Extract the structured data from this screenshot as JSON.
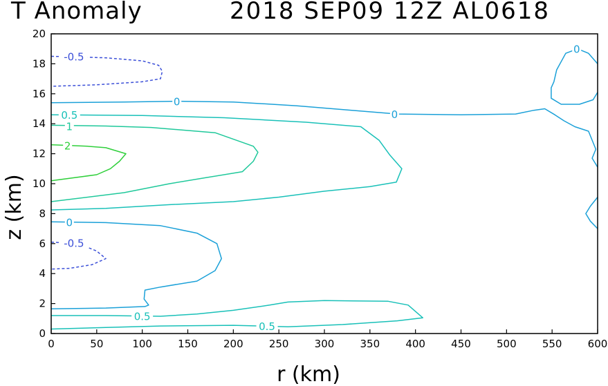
{
  "title_left": "T Anomaly",
  "title_right": "2018 SEP09 12Z   AL0618",
  "chart_data": {
    "type": "contour",
    "title": "T Anomaly   2018 SEP09 12Z   AL0618",
    "xlabel": "r (km)",
    "ylabel": "z (km)",
    "xlim": [
      0,
      600
    ],
    "ylim": [
      0,
      20
    ],
    "xticks": [
      0,
      50,
      100,
      150,
      200,
      250,
      300,
      350,
      400,
      450,
      500,
      550,
      600
    ],
    "yticks": [
      0,
      2,
      4,
      6,
      8,
      10,
      12,
      14,
      16,
      18,
      20
    ],
    "contours": [
      {
        "level": -0.5,
        "color": "#3b4fd8",
        "dashed": true,
        "points": [
          [
            0,
            18.5
          ],
          [
            60,
            18.4
          ],
          [
            100,
            18.2
          ],
          [
            118,
            17.9
          ],
          [
            122,
            17.5
          ],
          [
            120,
            17.0
          ],
          [
            100,
            16.8
          ],
          [
            50,
            16.6
          ],
          [
            0,
            16.5
          ]
        ]
      },
      {
        "level": 0,
        "color": "#1aa0d8",
        "dashed": false,
        "points": [
          [
            0,
            15.4
          ],
          [
            80,
            15.45
          ],
          [
            140,
            15.5
          ],
          [
            200,
            15.45
          ],
          [
            270,
            15.2
          ],
          [
            330,
            14.9
          ],
          [
            380,
            14.65
          ],
          [
            450,
            14.6
          ],
          [
            510,
            14.65
          ],
          [
            530,
            14.9
          ],
          [
            542,
            15.0
          ],
          [
            553,
            14.6
          ],
          [
            563,
            14.2
          ],
          [
            575,
            13.8
          ],
          [
            590,
            13.5
          ],
          [
            598,
            12.3
          ],
          [
            594,
            11.7
          ],
          [
            600,
            11.1
          ]
        ]
      },
      {
        "level": 0,
        "color": "#1aa0d8",
        "dashed": false,
        "points": [
          [
            600,
            18.0
          ],
          [
            590,
            18.7
          ],
          [
            578,
            19.0
          ],
          [
            565,
            18.7
          ],
          [
            555,
            17.6
          ],
          [
            552,
            16.8
          ],
          [
            549,
            16.4
          ],
          [
            549,
            15.7
          ],
          [
            560,
            15.3
          ],
          [
            580,
            15.3
          ],
          [
            595,
            15.6
          ],
          [
            600,
            16.1
          ]
        ]
      },
      {
        "level": 0,
        "color": "#1aa0d8",
        "dashed": false,
        "points": [
          [
            600,
            9.1
          ],
          [
            592,
            8.5
          ],
          [
            587,
            8.0
          ],
          [
            592,
            7.5
          ],
          [
            600,
            7.0
          ]
        ]
      },
      {
        "level": 0,
        "color": "#1aa0d8",
        "dashed": false,
        "points": [
          [
            0,
            7.45
          ],
          [
            60,
            7.4
          ],
          [
            120,
            7.2
          ],
          [
            160,
            6.7
          ],
          [
            182,
            6.0
          ],
          [
            187,
            5.0
          ],
          [
            180,
            4.2
          ],
          [
            160,
            3.5
          ],
          [
            120,
            3.1
          ],
          [
            103,
            2.9
          ],
          [
            102,
            2.3
          ],
          [
            107,
            1.9
          ],
          [
            103,
            1.8
          ],
          [
            60,
            1.7
          ],
          [
            0,
            1.65
          ]
        ]
      },
      {
        "level": 0.5,
        "color": "#18c0b8",
        "dashed": false,
        "points": [
          [
            0,
            14.6
          ],
          [
            100,
            14.55
          ],
          [
            190,
            14.4
          ],
          [
            280,
            14.1
          ],
          [
            340,
            13.8
          ],
          [
            360,
            12.9
          ],
          [
            372,
            11.9
          ],
          [
            385,
            11.0
          ],
          [
            379,
            10.1
          ],
          [
            350,
            9.8
          ],
          [
            300,
            9.5
          ],
          [
            250,
            9.1
          ],
          [
            200,
            8.8
          ],
          [
            130,
            8.6
          ],
          [
            60,
            8.35
          ],
          [
            0,
            8.25
          ]
        ]
      },
      {
        "level": 0.5,
        "color": "#18c0b8",
        "dashed": false,
        "points": [
          [
            0,
            1.2
          ],
          [
            60,
            1.2
          ],
          [
            120,
            1.15
          ],
          [
            160,
            1.3
          ],
          [
            200,
            1.55
          ],
          [
            240,
            1.9
          ],
          [
            260,
            2.1
          ],
          [
            300,
            2.2
          ],
          [
            370,
            2.15
          ],
          [
            392,
            1.9
          ],
          [
            408,
            1.05
          ],
          [
            380,
            0.85
          ],
          [
            320,
            0.6
          ],
          [
            260,
            0.45
          ],
          [
            200,
            0.55
          ],
          [
            120,
            0.5
          ],
          [
            60,
            0.4
          ],
          [
            0,
            0.3
          ]
        ]
      },
      {
        "level": 1,
        "color": "#1ec89a",
        "dashed": false,
        "points": [
          [
            0,
            13.9
          ],
          [
            60,
            13.85
          ],
          [
            110,
            13.75
          ],
          [
            180,
            13.4
          ],
          [
            222,
            12.5
          ],
          [
            227,
            12.1
          ],
          [
            222,
            11.5
          ],
          [
            210,
            10.8
          ],
          [
            170,
            10.4
          ],
          [
            130,
            10.0
          ],
          [
            80,
            9.4
          ],
          [
            0,
            8.8
          ]
        ]
      },
      {
        "level": 2,
        "color": "#2ecf3a",
        "dashed": false,
        "points": [
          [
            0,
            12.6
          ],
          [
            40,
            12.5
          ],
          [
            60,
            12.4
          ],
          [
            82,
            12.0
          ],
          [
            75,
            11.5
          ],
          [
            65,
            11.0
          ],
          [
            50,
            10.6
          ],
          [
            0,
            10.2
          ]
        ]
      }
    ],
    "contour_labels": [
      {
        "text": "-0.5",
        "x": 25,
        "y": 18.5,
        "color": "#3b4fd8"
      },
      {
        "text": "0",
        "x": 138,
        "y": 15.5,
        "color": "#1aa0d8"
      },
      {
        "text": "0",
        "x": 377,
        "y": 14.65,
        "color": "#1aa0d8"
      },
      {
        "text": "0",
        "x": 577,
        "y": 19.0,
        "color": "#1aa0d8"
      },
      {
        "text": "0.5",
        "x": 20,
        "y": 14.6,
        "color": "#18c0b8"
      },
      {
        "text": "1",
        "x": 20,
        "y": 13.85,
        "color": "#1ec89a"
      },
      {
        "text": "2",
        "x": 18,
        "y": 12.55,
        "color": "#2ecf3a"
      },
      {
        "text": "0",
        "x": 20,
        "y": 7.45,
        "color": "#1aa0d8"
      },
      {
        "text": "-0.5",
        "x": 25,
        "y": 6.05,
        "color": "#3b4fd8"
      },
      {
        "text": "0.5",
        "x": 100,
        "y": 1.17,
        "color": "#18c0b8"
      },
      {
        "text": "0.5",
        "x": 237,
        "y": 0.5,
        "color": "#18c0b8"
      }
    ],
    "extra_dashed": [
      {
        "level": -0.5,
        "color": "#3b4fd8",
        "points": [
          [
            0,
            6.1
          ],
          [
            30,
            6.0
          ],
          [
            50,
            5.5
          ],
          [
            60,
            5.0
          ],
          [
            45,
            4.6
          ],
          [
            20,
            4.35
          ],
          [
            0,
            4.3
          ]
        ]
      }
    ]
  }
}
